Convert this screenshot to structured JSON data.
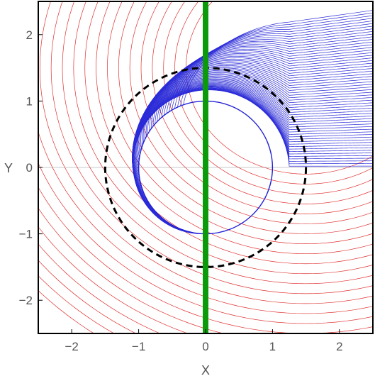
{
  "chart_data": {
    "type": "line",
    "title": "",
    "xlabel": "X",
    "ylabel": "Y",
    "xlim": [
      -2.5,
      2.5
    ],
    "ylim": [
      -2.5,
      2.5
    ],
    "x_ticks": [
      {
        "value": -2,
        "label": "−2"
      },
      {
        "value": -1,
        "label": "−1"
      },
      {
        "value": 0,
        "label": "0"
      },
      {
        "value": 1,
        "label": "1"
      },
      {
        "value": 2,
        "label": "2"
      }
    ],
    "y_ticks": [
      {
        "value": -2,
        "label": "−2"
      },
      {
        "value": -1,
        "label": "−1"
      },
      {
        "value": 0,
        "label": "0"
      },
      {
        "value": 1,
        "label": "1"
      },
      {
        "value": 2,
        "label": "2"
      }
    ],
    "grid": false,
    "series": [
      {
        "kind": "circle",
        "center": [
          0,
          0
        ],
        "radius": 1,
        "color": "#1f1fd6",
        "style": "solid"
      },
      {
        "kind": "circle",
        "center": [
          0,
          0
        ],
        "radius": 1.5,
        "color": "#000000",
        "style": "dashed"
      },
      {
        "kind": "vline",
        "x": 0,
        "color": "#0a9a0a",
        "style": "solid"
      },
      {
        "kind": "blue-curves",
        "impact_parameters": [
          0.02,
          0.06,
          0.1,
          0.14,
          0.18,
          0.22,
          0.26,
          0.3,
          0.34,
          0.38,
          0.42,
          0.46,
          0.5,
          0.54,
          0.58,
          0.62,
          0.66,
          0.7,
          0.74,
          0.78,
          0.82,
          0.86,
          0.9,
          0.94,
          0.98,
          1.02,
          1.06,
          1.1,
          1.14,
          1.18,
          1.22,
          1.26,
          1.3,
          1.34,
          1.38,
          1.42,
          1.46,
          1.5,
          1.54,
          1.58,
          1.62,
          1.66,
          1.7,
          1.74,
          1.78,
          1.82,
          1.86,
          1.9,
          1.94,
          1.98,
          2.02,
          2.06,
          2.1,
          2.14,
          2.18,
          2.22,
          2.26,
          2.3,
          2.34,
          2.38
        ],
        "color": "#2b2bd8"
      },
      {
        "kind": "red-curves",
        "radii": [
          1.6,
          1.75,
          1.9,
          2.05,
          2.2,
          2.35,
          2.5,
          2.65,
          2.8,
          2.95,
          3.1,
          3.25,
          3.4,
          3.55,
          3.7,
          3.85,
          4.0,
          4.15,
          4.3,
          4.45,
          4.6,
          4.75,
          4.9
        ],
        "color": "#e03030"
      }
    ]
  }
}
